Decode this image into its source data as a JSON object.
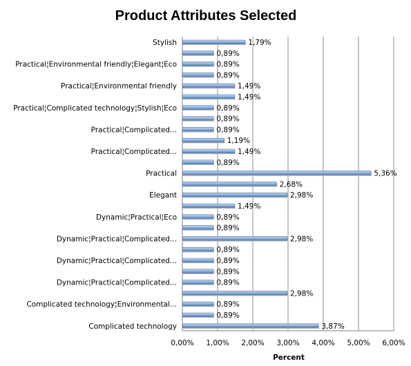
{
  "chart_data": {
    "type": "bar",
    "orientation": "horizontal",
    "title": "Product Attributes Selected",
    "xlabel": "Percent",
    "ylabel": "",
    "xlim": [
      0,
      6
    ],
    "x_ticks": [
      "0,00%",
      "1,00%",
      "2,00%",
      "3,00%",
      "4,00%",
      "5,00%",
      "6,00%"
    ],
    "grid": "vertical",
    "legend": "none",
    "bar_color": "#7fa6d6",
    "rows": [
      {
        "category": "Stylish",
        "value": 1.79,
        "label": "1,79%"
      },
      {
        "category": "",
        "value": 0.89,
        "label": "0,89%"
      },
      {
        "category": "Practical¦Environmental friendly¦Elegant¦Eco",
        "value": 0.89,
        "label": "0,89%"
      },
      {
        "category": "",
        "value": 0.89,
        "label": "0,89%"
      },
      {
        "category": "Practical¦Environmental friendly",
        "value": 1.49,
        "label": "1,49%"
      },
      {
        "category": "",
        "value": 1.49,
        "label": "1,49%"
      },
      {
        "category": "Practical¦Complicated technology¦Stylish¦Eco",
        "value": 0.89,
        "label": "0,89%"
      },
      {
        "category": "",
        "value": 0.89,
        "label": "0,89%"
      },
      {
        "category": "Practical¦Complicated...",
        "value": 0.89,
        "label": "0,89%"
      },
      {
        "category": "",
        "value": 1.19,
        "label": "1,19%"
      },
      {
        "category": "Practical¦Complicated...",
        "value": 1.49,
        "label": "1,49%"
      },
      {
        "category": "",
        "value": 0.89,
        "label": "0,89%"
      },
      {
        "category": "Practical",
        "value": 5.36,
        "label": "5,36%"
      },
      {
        "category": "",
        "value": 2.68,
        "label": "2,68%"
      },
      {
        "category": "Elegant",
        "value": 2.98,
        "label": "2,98%"
      },
      {
        "category": "",
        "value": 1.49,
        "label": "1,49%"
      },
      {
        "category": "Dynamic¦Practical¦Eco",
        "value": 0.89,
        "label": "0,89%"
      },
      {
        "category": "",
        "value": 0.89,
        "label": "0,89%"
      },
      {
        "category": "Dynamic¦Practical¦Complicated...",
        "value": 2.98,
        "label": "2,98%"
      },
      {
        "category": "",
        "value": 0.89,
        "label": "0,89%"
      },
      {
        "category": "Dynamic¦Practical¦Complicated...",
        "value": 0.89,
        "label": "0,89%"
      },
      {
        "category": "",
        "value": 0.89,
        "label": "0,89%"
      },
      {
        "category": "Dynamic¦Practical¦Complicated...",
        "value": 0.89,
        "label": "0,89%"
      },
      {
        "category": "",
        "value": 2.98,
        "label": "2,98%"
      },
      {
        "category": "Complicated technology¦Environmental...",
        "value": 0.89,
        "label": "0,89%"
      },
      {
        "category": "",
        "value": 0.89,
        "label": "0,89%"
      },
      {
        "category": "Complicated technology",
        "value": 3.87,
        "label": "3,87%"
      }
    ]
  }
}
